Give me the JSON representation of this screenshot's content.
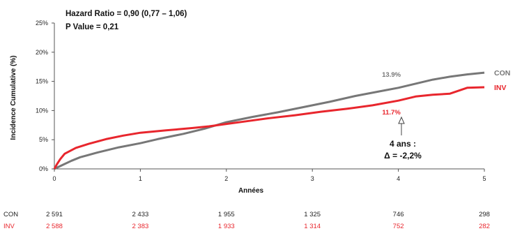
{
  "chart_data": {
    "type": "line",
    "title": "",
    "xlabel": "Années",
    "ylabel": "Incidence Cumulative  (%)",
    "xlim": [
      0,
      5
    ],
    "ylim": [
      0,
      25
    ],
    "x_ticks": [
      "0",
      "1",
      "2",
      "3",
      "4",
      "5"
    ],
    "y_ticks": [
      "0%",
      "5%",
      "10%",
      "15%",
      "20%",
      "25%"
    ],
    "grid": false,
    "stats": {
      "hazard_ratio": "Hazard Ratio = 0,90 (0,77 – 1,06)",
      "p_value": "P Value = 0,21"
    },
    "series": [
      {
        "name": "CON",
        "color": "#777777",
        "end_value_label": "13.9%",
        "points": [
          [
            0,
            0
          ],
          [
            0.1,
            0.7
          ],
          [
            0.2,
            1.4
          ],
          [
            0.3,
            2.0
          ],
          [
            0.5,
            2.8
          ],
          [
            0.75,
            3.7
          ],
          [
            1.0,
            4.4
          ],
          [
            1.2,
            5.1
          ],
          [
            1.5,
            6.0
          ],
          [
            1.75,
            6.9
          ],
          [
            2.0,
            8.0
          ],
          [
            2.3,
            8.9
          ],
          [
            2.6,
            9.7
          ],
          [
            2.9,
            10.6
          ],
          [
            3.2,
            11.5
          ],
          [
            3.5,
            12.5
          ],
          [
            3.75,
            13.2
          ],
          [
            4.0,
            13.9
          ],
          [
            4.2,
            14.6
          ],
          [
            4.4,
            15.3
          ],
          [
            4.6,
            15.8
          ],
          [
            4.8,
            16.2
          ],
          [
            5.0,
            16.5
          ]
        ]
      },
      {
        "name": "INV",
        "color": "#e8262d",
        "end_value_label": "11.7%",
        "points": [
          [
            0,
            0
          ],
          [
            0.03,
            0.8
          ],
          [
            0.07,
            1.7
          ],
          [
            0.12,
            2.6
          ],
          [
            0.25,
            3.6
          ],
          [
            0.4,
            4.3
          ],
          [
            0.6,
            5.1
          ],
          [
            0.8,
            5.7
          ],
          [
            1.0,
            6.2
          ],
          [
            1.3,
            6.6
          ],
          [
            1.6,
            7.0
          ],
          [
            1.8,
            7.3
          ],
          [
            2.0,
            7.7
          ],
          [
            2.2,
            8.1
          ],
          [
            2.5,
            8.7
          ],
          [
            2.8,
            9.2
          ],
          [
            3.1,
            9.8
          ],
          [
            3.4,
            10.3
          ],
          [
            3.7,
            10.9
          ],
          [
            4.0,
            11.7
          ],
          [
            4.2,
            12.4
          ],
          [
            4.4,
            12.7
          ],
          [
            4.6,
            12.9
          ],
          [
            4.8,
            13.9
          ],
          [
            5.0,
            14.0
          ]
        ]
      }
    ],
    "annotation": {
      "line1": "4 ans :",
      "line2": "Δ = -2,2%",
      "at_x": 4
    },
    "risk_table": [
      {
        "label": "CON",
        "color": "#222222",
        "values": [
          "2 591",
          "2 433",
          "1 955",
          "1 325",
          "746",
          "298"
        ]
      },
      {
        "label": "INV",
        "color": "#e8262d",
        "values": [
          "2 588",
          "2 383",
          "1 933",
          "1 314",
          "752",
          "282"
        ]
      }
    ]
  }
}
